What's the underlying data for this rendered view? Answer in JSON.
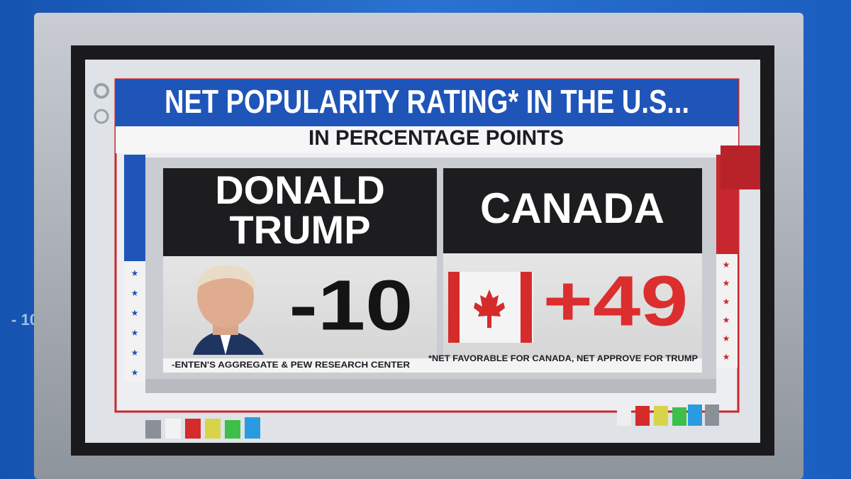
{
  "screen": {
    "side_label": "- 10",
    "title": "NET POPULARITY RATING* IN THE U.S...",
    "subtitle": "IN PERCENTAGE POINTS",
    "panels": [
      {
        "name_lines": [
          "DONALD",
          "TRUMP"
        ],
        "value": "-10"
      },
      {
        "name_lines": [
          "CANADA"
        ],
        "value": "+49"
      }
    ],
    "source": "-ENTEN'S AGGREGATE & PEW RESEARCH CENTER",
    "footnote": "*NET FAVORABLE FOR CANADA, NET APPROVE FOR TRUMP"
  }
}
